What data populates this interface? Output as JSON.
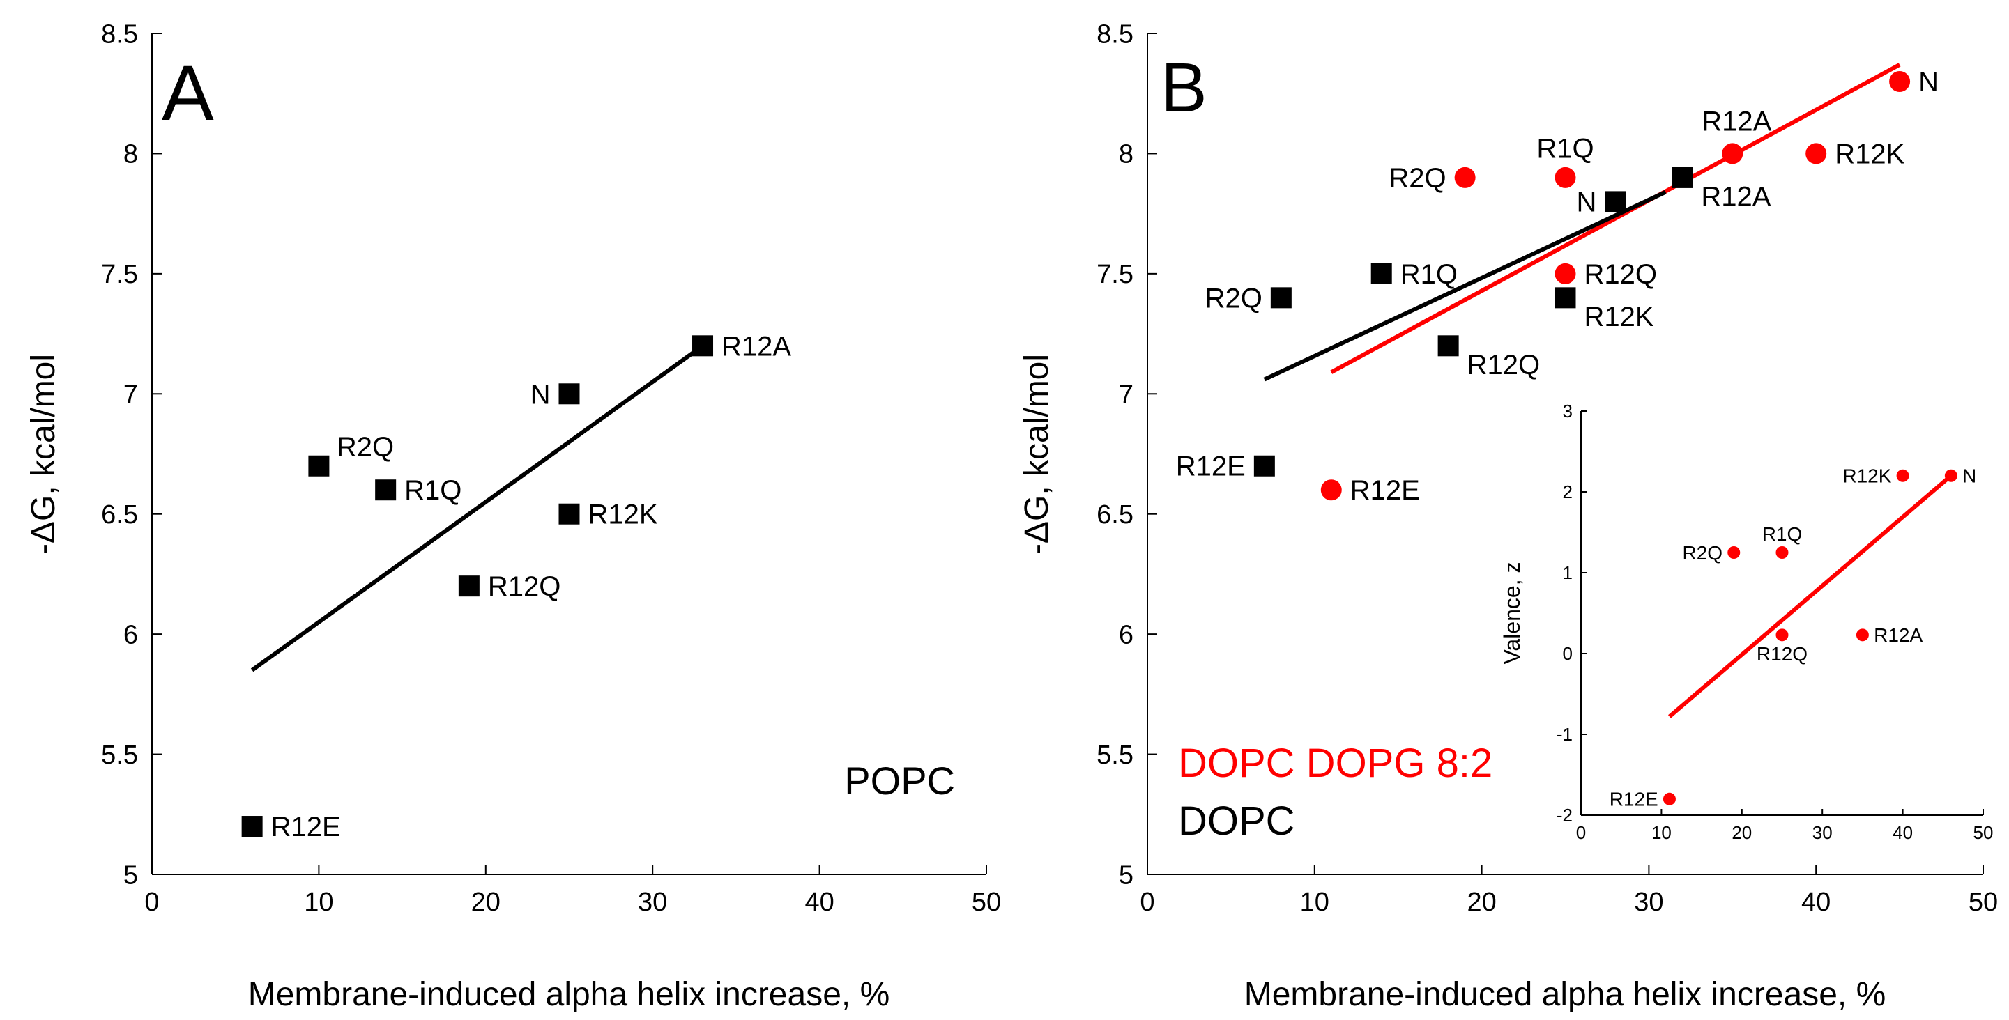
{
  "colors": {
    "dopg": "#ff0000",
    "dopc": "#000000",
    "axis": "#000000"
  },
  "chart_data": [
    {
      "panel": "A",
      "type": "scatter",
      "xlabel": "Membrane-induced alpha helix increase, %",
      "ylabel": "-ΔG, kcal/mol",
      "xlim": [
        0,
        50
      ],
      "ylim": [
        5,
        8.5
      ],
      "xticks": [
        "0",
        "10",
        "20",
        "30",
        "40",
        "50"
      ],
      "yticks": [
        "5",
        "5.5",
        "6",
        "6.5",
        "7",
        "7.5",
        "8",
        "8.5"
      ],
      "legend": [
        {
          "text": "POPC",
          "color": "#000000"
        }
      ],
      "series": [
        {
          "name": "POPC",
          "marker": "square",
          "color": "#000000",
          "points": [
            {
              "label": "R12A",
              "x": 33,
              "y": 7.2,
              "pos": "right"
            },
            {
              "label": "N",
              "x": 25,
              "y": 7.0,
              "pos": "left"
            },
            {
              "label": "R2Q",
              "x": 10,
              "y": 6.7,
              "pos": "upright"
            },
            {
              "label": "R1Q",
              "x": 14,
              "y": 6.6,
              "pos": "right"
            },
            {
              "label": "R12K",
              "x": 25,
              "y": 6.5,
              "pos": "right"
            },
            {
              "label": "R12Q",
              "x": 19,
              "y": 6.2,
              "pos": "right"
            },
            {
              "label": "R12E",
              "x": 6,
              "y": 5.2,
              "pos": "right"
            }
          ],
          "fit": {
            "x1": 6,
            "y1": 5.85,
            "x2": 33,
            "y2": 7.2
          }
        }
      ]
    },
    {
      "panel": "B",
      "type": "scatter",
      "xlabel": "Membrane-induced alpha helix increase, %",
      "ylabel": "-ΔG, kcal/mol",
      "xlim": [
        0,
        50
      ],
      "ylim": [
        5,
        8.5
      ],
      "xticks": [
        "0",
        "10",
        "20",
        "30",
        "40",
        "50"
      ],
      "yticks": [
        "5",
        "5.5",
        "6",
        "6.5",
        "7",
        "7.5",
        "8",
        "8.5"
      ],
      "legend": [
        {
          "text": "DOPC DOPG 8:2",
          "color": "#ff0000"
        },
        {
          "text": "DOPC",
          "color": "#000000"
        }
      ],
      "series": [
        {
          "name": "DOPC DOPG 8:2",
          "marker": "circle",
          "color": "#ff0000",
          "points": [
            {
              "label": "N",
              "x": 45,
              "y": 8.3,
              "pos": "right"
            },
            {
              "label": "R12A",
              "x": 35,
              "y": 8.0,
              "pos": "upleft"
            },
            {
              "label": "R12K",
              "x": 40,
              "y": 8.0,
              "pos": "right"
            },
            {
              "label": "R2Q",
              "x": 19,
              "y": 7.9,
              "pos": "left"
            },
            {
              "label": "R1Q",
              "x": 25,
              "y": 7.9,
              "pos": "up"
            },
            {
              "label": "R12Q",
              "x": 25,
              "y": 7.5,
              "pos": "right"
            },
            {
              "label": "R12E",
              "x": 11,
              "y": 6.6,
              "pos": "right"
            }
          ],
          "fit": {
            "x1": 11,
            "y1": 7.09,
            "x2": 45,
            "y2": 8.37
          }
        },
        {
          "name": "DOPC",
          "marker": "square",
          "color": "#000000",
          "points": [
            {
              "label": "R12A",
              "x": 32,
              "y": 7.9,
              "pos": "downright"
            },
            {
              "label": "N",
              "x": 28,
              "y": 7.8,
              "pos": "left"
            },
            {
              "label": "R1Q",
              "x": 14,
              "y": 7.5,
              "pos": "right"
            },
            {
              "label": "R2Q",
              "x": 8,
              "y": 7.4,
              "pos": "left"
            },
            {
              "label": "R12K",
              "x": 25,
              "y": 7.4,
              "pos": "downright"
            },
            {
              "label": "R12Q",
              "x": 18,
              "y": 7.2,
              "pos": "downright"
            },
            {
              "label": "R12E",
              "x": 7,
              "y": 6.7,
              "pos": "left"
            }
          ],
          "fit": {
            "x1": 7,
            "y1": 7.06,
            "x2": 31,
            "y2": 7.84
          }
        }
      ]
    },
    {
      "panel": "B-inset",
      "type": "scatter",
      "xlabel": "",
      "ylabel": "Valence, z",
      "xlim": [
        0,
        50
      ],
      "ylim": [
        -2,
        3
      ],
      "xticks": [
        "0",
        "10",
        "20",
        "30",
        "40",
        "50"
      ],
      "yticks": [
        "-2",
        "-1",
        "0",
        "1",
        "2",
        "3"
      ],
      "series": [
        {
          "name": "Valence",
          "marker": "circle",
          "color": "#ff0000",
          "points": [
            {
              "label": "N",
              "x": 46,
              "y": 2.2,
              "pos": "right"
            },
            {
              "label": "R12K",
              "x": 40,
              "y": 2.2,
              "pos": "left"
            },
            {
              "label": "R2Q",
              "x": 19,
              "y": 1.25,
              "pos": "left"
            },
            {
              "label": "R1Q",
              "x": 25,
              "y": 1.25,
              "pos": "up"
            },
            {
              "label": "R12Q",
              "x": 25,
              "y": 0.23,
              "pos": "down"
            },
            {
              "label": "R12A",
              "x": 35,
              "y": 0.23,
              "pos": "right"
            },
            {
              "label": "R12E",
              "x": 11,
              "y": -1.8,
              "pos": "left"
            }
          ],
          "fit": {
            "x1": 11,
            "y1": -0.78,
            "x2": 46,
            "y2": 2.2
          }
        }
      ]
    }
  ]
}
